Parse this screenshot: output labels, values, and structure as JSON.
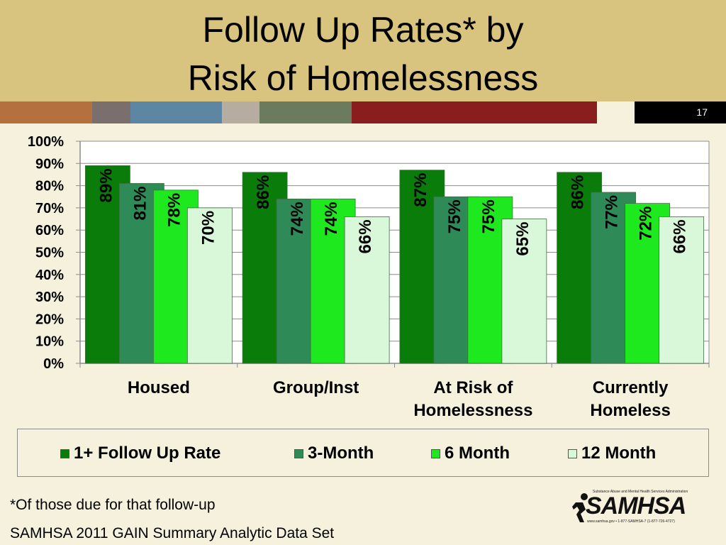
{
  "slide": {
    "title_line1": "Follow Up Rates* by",
    "title_line2": "Risk of Homelessness",
    "page_number": "17",
    "footnote": "*Of those due for that follow-up",
    "source": "SAMHSA 2011 GAIN Summary Analytic Data Set"
  },
  "logo": {
    "name": "SAMHSA",
    "tagline": "Substance Abuse and Mental Health Services Administration",
    "contact": "www.samhsa.gov • 1-877-SAMHSA-7 (1-877-726-4727)",
    "icon": "running-figure-icon"
  },
  "colors": {
    "header_bg": "#d8c47f",
    "background": "#f6f1dc",
    "stripes": [
      "#b5703f",
      "#7a6f6c",
      "#5d86a3",
      "#b6ada0",
      "#6a7b5e",
      "#8a1d1e"
    ]
  },
  "chart_data": {
    "type": "bar",
    "categories": [
      [
        "Housed"
      ],
      [
        "Group/Inst"
      ],
      [
        "At Risk of",
        "Homelessness"
      ],
      [
        "Currently",
        "Homeless"
      ]
    ],
    "series": [
      {
        "name": "1+ Follow Up Rate",
        "values": [
          89,
          86,
          87,
          86
        ],
        "labels": [
          "89%",
          "86%",
          "87%",
          "86%"
        ],
        "color": "#0a7c0a"
      },
      {
        "name": "3-Month",
        "values": [
          81,
          74,
          75,
          77
        ],
        "labels": [
          "81%",
          "74%",
          "75%",
          "77%"
        ],
        "color": "#2e8b57"
      },
      {
        "name": "6 Month",
        "values": [
          78,
          74,
          75,
          72
        ],
        "labels": [
          "78%",
          "74%",
          "75%",
          "72%"
        ],
        "color": "#1ee81e"
      },
      {
        "name": "12 Month",
        "values": [
          70,
          66,
          65,
          66
        ],
        "labels": [
          "70%",
          "66%",
          "65%",
          "66%"
        ],
        "color": "#d9f7d9"
      }
    ],
    "yticks": [
      "0%",
      "10%",
      "20%",
      "30%",
      "40%",
      "50%",
      "60%",
      "70%",
      "80%",
      "90%",
      "100%"
    ],
    "ylim": [
      0,
      100
    ],
    "grid": true,
    "legend_position": "bottom",
    "title": "",
    "xlabel": "",
    "ylabel": ""
  }
}
